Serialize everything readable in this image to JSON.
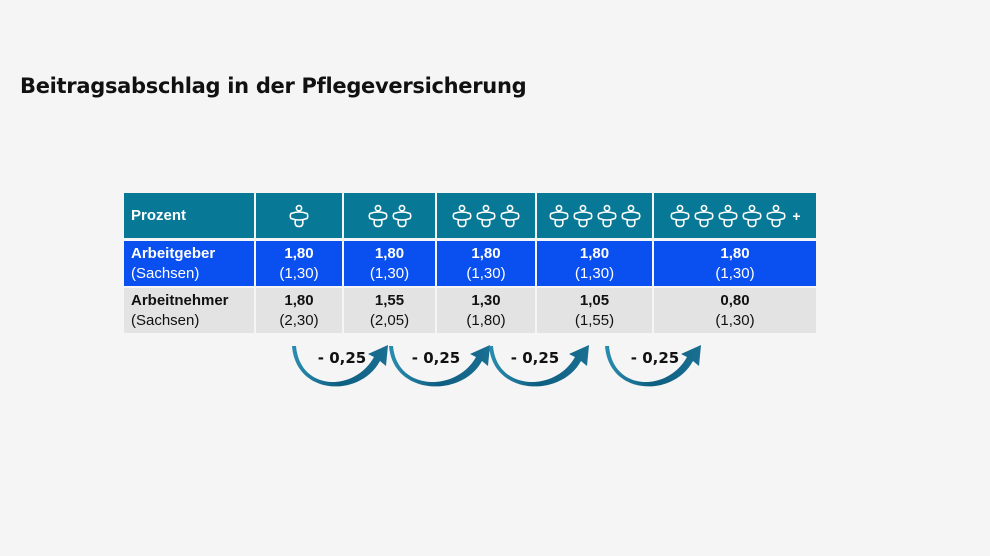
{
  "title": "Beitragsabschlag in der Pflegeversicherung",
  "colors": {
    "header": "#077896",
    "employer_row": "#0a4ff0",
    "employee_row": "#e4e3e3",
    "arrow": "#1a6585"
  },
  "chart_data": {
    "type": "table",
    "header_label": "Prozent",
    "columns": [
      {
        "icon": "pacifier-icon",
        "count": 1,
        "plus": ""
      },
      {
        "icon": "pacifier-icon",
        "count": 2,
        "plus": ""
      },
      {
        "icon": "pacifier-icon",
        "count": 3,
        "plus": ""
      },
      {
        "icon": "pacifier-icon",
        "count": 4,
        "plus": ""
      },
      {
        "icon": "pacifier-icon",
        "count": 5,
        "plus": "+"
      }
    ],
    "rows": [
      {
        "label": "Arbeitgeber",
        "sublabel": "(Sachsen)",
        "values": [
          "1,80",
          "1,80",
          "1,80",
          "1,80",
          "1,80"
        ],
        "sachsen": [
          "(1,30)",
          "(1,30)",
          "(1,30)",
          "(1,30)",
          "(1,30)"
        ]
      },
      {
        "label": "Arbeitnehmer",
        "sublabel": "(Sachsen)",
        "values": [
          "1,80",
          "1,55",
          "1,30",
          "1,05",
          "0,80"
        ],
        "sachsen": [
          "(2,30)",
          "(2,05)",
          "(1,80)",
          "(1,55)",
          "(1,30)"
        ]
      }
    ],
    "steps": [
      "- 0,25",
      "- 0,25",
      "- 0,25",
      "- 0,25"
    ]
  }
}
